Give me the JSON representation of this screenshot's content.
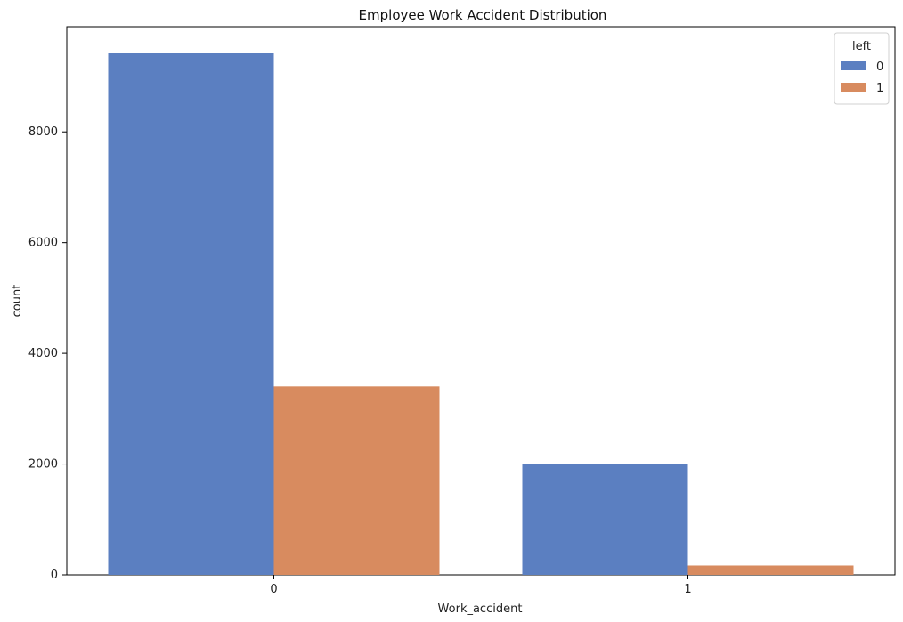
{
  "chart_data": {
    "type": "bar",
    "title": "Employee Work Accident Distribution",
    "xlabel": "Work_accident",
    "ylabel": "count",
    "categories": [
      "0",
      "1"
    ],
    "series": [
      {
        "name": "0",
        "values": [
          9428,
          2000
        ],
        "color": "#5b7fc1"
      },
      {
        "name": "1",
        "values": [
          3402,
          169
        ],
        "color": "#d88b5f"
      }
    ],
    "ylim": [
      0,
      9900
    ],
    "yticks": [
      0,
      2000,
      4000,
      6000,
      8000
    ],
    "legend": {
      "title": "left",
      "placement": "top-right"
    },
    "grid": false
  }
}
